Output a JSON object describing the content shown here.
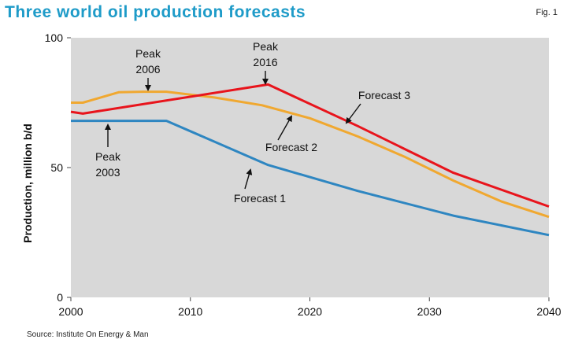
{
  "header": {
    "title": "Three world oil production forecasts",
    "fig_label": "Fig. 1"
  },
  "footer": {
    "source": "Source: Institute On Energy & Man"
  },
  "colors": {
    "title": "#1e9bc8",
    "plot_bg": "#d8d8d8",
    "forecast1": "#2e86c1",
    "forecast2": "#f0a830",
    "forecast3": "#e8141c"
  },
  "chart_data": {
    "type": "line",
    "title": "Three world oil production forecasts",
    "xlabel": "",
    "ylabel": "Production, million b/d",
    "xlim": [
      2000,
      2040
    ],
    "ylim": [
      0,
      100
    ],
    "x_ticks": [
      "2000",
      "2010",
      "2020",
      "2030",
      "2040"
    ],
    "y_ticks": [
      "0",
      "50",
      "100"
    ],
    "grid": false,
    "series": [
      {
        "name": "Forecast 1",
        "x": [
          2000,
          2008,
          2016.5,
          2024,
          2032,
          2040
        ],
        "y": [
          68,
          68,
          51,
          41,
          31.5,
          24
        ]
      },
      {
        "name": "Forecast 2",
        "x": [
          2000,
          2001,
          2004,
          2006,
          2008,
          2012,
          2016,
          2020,
          2024,
          2028,
          2032,
          2036,
          2040
        ],
        "y": [
          75,
          75,
          79,
          79.2,
          79.2,
          77,
          74,
          69,
          62,
          54,
          45,
          37,
          31
        ]
      },
      {
        "name": "Forecast 3",
        "x": [
          2000,
          2001,
          2016.5,
          2024,
          2032,
          2040
        ],
        "y": [
          71.5,
          70.8,
          82,
          66,
          48,
          35
        ]
      }
    ],
    "annotations": [
      {
        "text": [
          "Peak",
          "2006"
        ]
      },
      {
        "text": [
          "Peak",
          "2016"
        ]
      },
      {
        "text": [
          "Peak",
          "2003"
        ]
      },
      {
        "text": [
          "Forecast 3"
        ]
      },
      {
        "text": [
          "Forecast 2"
        ]
      },
      {
        "text": [
          "Forecast 1"
        ]
      }
    ]
  }
}
